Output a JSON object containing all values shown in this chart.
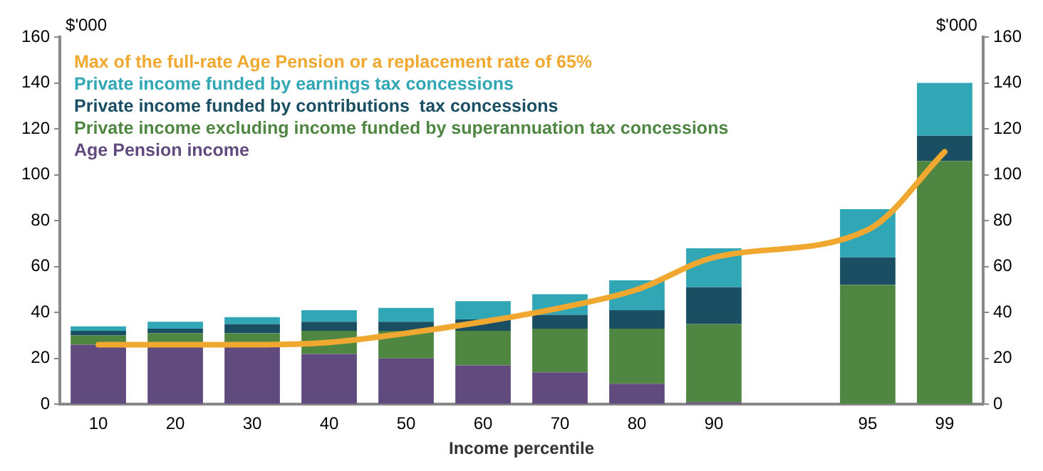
{
  "chart_data": {
    "type": "bar",
    "stacked": true,
    "xlabel": "Income percentile",
    "ylabel": "$'000",
    "y2label": "$'000",
    "categories": [
      "10",
      "20",
      "30",
      "40",
      "50",
      "60",
      "70",
      "80",
      "90",
      null,
      "95",
      "99"
    ],
    "series": [
      {
        "name": "Age Pension income",
        "color": "#614a7d",
        "values": [
          26,
          25,
          25,
          22,
          20,
          17,
          14,
          9,
          1,
          null,
          0,
          0
        ]
      },
      {
        "name": "Private income excluding income funded by superannuation tax concessions",
        "color": "#4e8642",
        "values": [
          4,
          6,
          6,
          10,
          12,
          15,
          19,
          24,
          34,
          null,
          52,
          106
        ]
      },
      {
        "name": "Private income funded by contributions  tax concessions",
        "color": "#1a4f63",
        "values": [
          2,
          2,
          4,
          4,
          4,
          5,
          6,
          8,
          16,
          null,
          12,
          11
        ]
      },
      {
        "name": "Private income funded by earnings tax concessions",
        "color": "#31a6b5",
        "values": [
          2,
          3,
          3,
          5,
          6,
          8,
          9,
          13,
          17,
          null,
          21,
          23
        ]
      },
      {
        "name": "Max of the full-rate Age Pension or a replacement rate of 65%",
        "type": "line",
        "color": "#f0a830",
        "values": [
          26,
          26,
          26,
          27,
          31,
          36,
          42,
          50,
          64,
          null,
          76,
          110
        ]
      }
    ],
    "ylim": [
      0,
      160
    ],
    "yticks": [
      0,
      20,
      40,
      60,
      80,
      100,
      120,
      140,
      160
    ],
    "y2lim": [
      0,
      160
    ],
    "y2ticks": [
      0,
      20,
      40,
      60,
      80,
      100,
      120,
      140,
      160
    ],
    "grid": false,
    "legend": "top left"
  }
}
